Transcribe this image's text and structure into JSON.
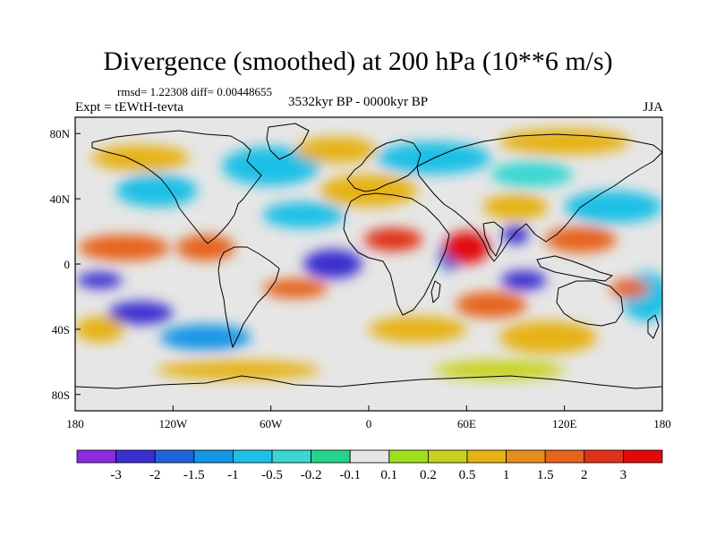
{
  "chart_data": {
    "type": "heatmap",
    "title": "Divergence (smoothed) at 200 hPa (10**6 m/s)",
    "stats": "rmsd= 1.22308  diff= 0.00448655",
    "experiment": "Expt = tEWtH-tevta",
    "period": "3532kyr BP - 0000kyr BP",
    "season": "JJA",
    "xlim": [
      -180,
      180
    ],
    "ylim": [
      -90,
      90
    ],
    "x_ticks": [
      {
        "value": -180,
        "label": "180"
      },
      {
        "value": -120,
        "label": "120W"
      },
      {
        "value": -60,
        "label": "60W"
      },
      {
        "value": 0,
        "label": "0"
      },
      {
        "value": 60,
        "label": "60E"
      },
      {
        "value": 120,
        "label": "120E"
      },
      {
        "value": 180,
        "label": "180"
      }
    ],
    "y_ticks": [
      {
        "value": 80,
        "label": "80N"
      },
      {
        "value": 40,
        "label": "40N"
      },
      {
        "value": 0,
        "label": "0"
      },
      {
        "value": -40,
        "label": "40S"
      },
      {
        "value": -80,
        "label": "80S"
      }
    ],
    "colorbar": {
      "levels": [
        "-3",
        "-2",
        "-1.5",
        "-1",
        "-0.5",
        "-0.2",
        "-0.1",
        "0.1",
        "0.2",
        "0.5",
        "1",
        "1.5",
        "2",
        "3"
      ],
      "colors": [
        "#8a2be2",
        "#3a2fd0",
        "#1f63dc",
        "#1496e6",
        "#1fc0e6",
        "#3ad7d2",
        "#25d48c",
        "#e6e6e6",
        "#9ee01e",
        "#c7d21e",
        "#e6b214",
        "#e88c1e",
        "#e6641e",
        "#e03218",
        "#e00a0a"
      ]
    },
    "blobs": [
      {
        "lon": -22,
        "lat": 0,
        "rx": 18,
        "ry": 9,
        "value": -3
      },
      {
        "lon": -140,
        "lat": -30,
        "rx": 20,
        "ry": 7,
        "value": -2.2
      },
      {
        "lon": -165,
        "lat": -10,
        "rx": 14,
        "ry": 5,
        "value": -2.2
      },
      {
        "lon": 95,
        "lat": -10,
        "rx": 14,
        "ry": 6,
        "value": -2.5
      },
      {
        "lon": 90,
        "lat": 18,
        "rx": 8,
        "ry": 6,
        "value": -2.2
      },
      {
        "lon": 50,
        "lat": 5,
        "rx": 7,
        "ry": 9,
        "value": -1.8
      },
      {
        "lon": -100,
        "lat": -45,
        "rx": 28,
        "ry": 8,
        "value": -1.2
      },
      {
        "lon": -60,
        "lat": 60,
        "rx": 30,
        "ry": 12,
        "value": -0.7
      },
      {
        "lon": 40,
        "lat": 65,
        "rx": 35,
        "ry": 10,
        "value": -0.7
      },
      {
        "lon": 150,
        "lat": 35,
        "rx": 30,
        "ry": 10,
        "value": -0.8
      },
      {
        "lon": -130,
        "lat": 45,
        "rx": 25,
        "ry": 10,
        "value": -0.7
      },
      {
        "lon": -40,
        "lat": 30,
        "rx": 25,
        "ry": 8,
        "value": -0.6
      },
      {
        "lon": 100,
        "lat": 55,
        "rx": 25,
        "ry": 8,
        "value": -0.5
      },
      {
        "lon": 170,
        "lat": -20,
        "rx": 15,
        "ry": 15,
        "value": -0.6
      },
      {
        "lon": 60,
        "lat": 10,
        "rx": 14,
        "ry": 10,
        "value": 3
      },
      {
        "lon": 15,
        "lat": 15,
        "rx": 18,
        "ry": 7,
        "value": 2
      },
      {
        "lon": -150,
        "lat": 10,
        "rx": 28,
        "ry": 8,
        "value": 1.5
      },
      {
        "lon": -100,
        "lat": 10,
        "rx": 18,
        "ry": 8,
        "value": 1.6
      },
      {
        "lon": -45,
        "lat": -15,
        "rx": 20,
        "ry": 6,
        "value": 1.8
      },
      {
        "lon": 130,
        "lat": 15,
        "rx": 22,
        "ry": 8,
        "value": 1.5
      },
      {
        "lon": 75,
        "lat": -25,
        "rx": 22,
        "ry": 8,
        "value": 1.5
      },
      {
        "lon": 160,
        "lat": -15,
        "rx": 12,
        "ry": 6,
        "value": 1.5
      },
      {
        "lon": -165,
        "lat": -40,
        "rx": 15,
        "ry": 8,
        "value": 0.8
      },
      {
        "lon": 30,
        "lat": -40,
        "rx": 30,
        "ry": 8,
        "value": 0.8
      },
      {
        "lon": 110,
        "lat": -45,
        "rx": 30,
        "ry": 10,
        "value": 0.8
      },
      {
        "lon": -140,
        "lat": 65,
        "rx": 30,
        "ry": 8,
        "value": 0.8
      },
      {
        "lon": 0,
        "lat": 45,
        "rx": 30,
        "ry": 10,
        "value": 0.8
      },
      {
        "lon": 90,
        "lat": 35,
        "rx": 20,
        "ry": 8,
        "value": 0.8
      },
      {
        "lon": -20,
        "lat": 70,
        "rx": 25,
        "ry": 8,
        "value": 0.6
      },
      {
        "lon": 120,
        "lat": 75,
        "rx": 40,
        "ry": 8,
        "value": 0.6
      },
      {
        "lon": -80,
        "lat": -65,
        "rx": 50,
        "ry": 6,
        "value": 0.5
      },
      {
        "lon": 80,
        "lat": -65,
        "rx": 40,
        "ry": 6,
        "value": 0.4
      }
    ]
  }
}
